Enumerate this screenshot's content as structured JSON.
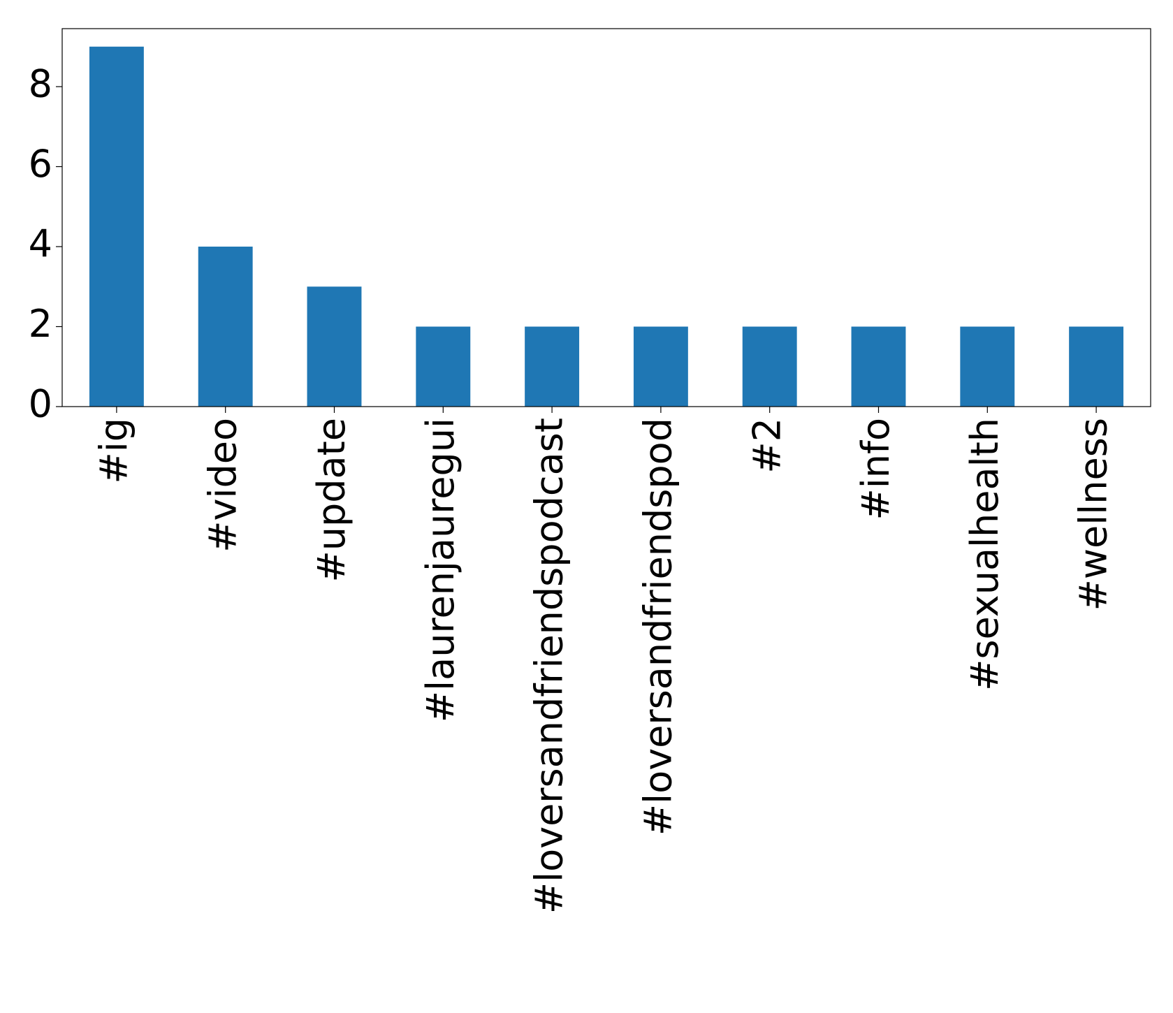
{
  "chart_data": {
    "type": "bar",
    "categories": [
      "#ig",
      "#video",
      "#update",
      "#laurenjauregui",
      "#loversandfriendspodcast",
      "#loversandfriendspod",
      "#2",
      "#info",
      "#sexualhealth",
      "#wellness"
    ],
    "values": [
      9,
      4,
      3,
      2,
      2,
      2,
      2,
      2,
      2,
      2
    ],
    "color": "#1f77b4",
    "ylim": [
      0,
      9.45
    ],
    "yticks": [
      0,
      2,
      4,
      6,
      8
    ],
    "grid": false
  }
}
